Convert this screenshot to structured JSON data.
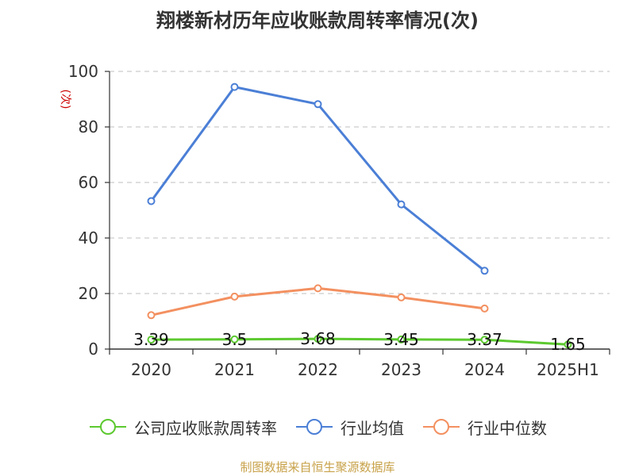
{
  "title": "翔楼新材历年应收账款周转率情况(次)",
  "source": "制图数据来自恒生聚源数据库",
  "chart_data": {
    "type": "line",
    "title": "翔楼新材历年应收账款周转率情况(次)",
    "xlabel": "",
    "ylabel": "(次)",
    "categories": [
      "2020",
      "2021",
      "2022",
      "2023",
      "2024",
      "2025H1"
    ],
    "ylim": [
      0,
      100
    ],
    "yticks": [
      0,
      20,
      40,
      60,
      80,
      100
    ],
    "grid": true,
    "legend_position": "bottom",
    "series": [
      {
        "name": "公司应收账款周转率",
        "color": "#5cc92f",
        "values": [
          3.39,
          3.5,
          3.68,
          3.45,
          3.37,
          1.65
        ],
        "labels": [
          "3.39",
          "3.5",
          "3.68",
          "3.45",
          "3.37",
          "1.65"
        ]
      },
      {
        "name": "行业均值",
        "color": "#4b7fd6",
        "values": [
          53.3,
          94.4,
          88.2,
          52.1,
          28.2,
          null
        ]
      },
      {
        "name": "行业中位数",
        "color": "#f39060",
        "values": [
          12.2,
          18.9,
          21.9,
          18.6,
          14.6,
          null
        ]
      }
    ]
  }
}
